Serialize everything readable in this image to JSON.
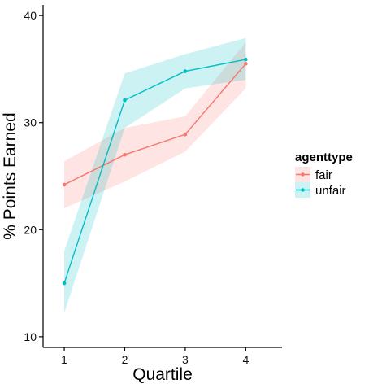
{
  "chart_data": {
    "type": "line",
    "xlabel": "Quartile",
    "ylabel": "% Points Earned",
    "x": [
      1,
      2,
      3,
      4
    ],
    "x_tick_labels": [
      "1",
      "2",
      "3",
      "4"
    ],
    "y_ticks": [
      10,
      20,
      30,
      40
    ],
    "y_tick_labels": [
      "10",
      "20",
      "30",
      "40"
    ],
    "xlim": [
      0.65,
      4.6
    ],
    "ylim": [
      9.0,
      41.0
    ],
    "grid": false,
    "legend": {
      "title": "agenttype",
      "position": "right"
    },
    "series": [
      {
        "name": "fair",
        "color": "#F8766D",
        "band_color": "#F8766D",
        "values": [
          24.2,
          27.0,
          28.9,
          35.5
        ],
        "lower": [
          22.0,
          24.5,
          27.3,
          33.2
        ],
        "upper": [
          26.4,
          29.5,
          30.6,
          37.5
        ]
      },
      {
        "name": "unfair",
        "color": "#00BFC4",
        "band_color": "#00BFC4",
        "values": [
          15.0,
          32.1,
          34.8,
          35.9
        ],
        "lower": [
          12.2,
          29.5,
          33.2,
          34.0
        ],
        "upper": [
          18.0,
          34.6,
          36.4,
          37.9
        ]
      }
    ]
  }
}
